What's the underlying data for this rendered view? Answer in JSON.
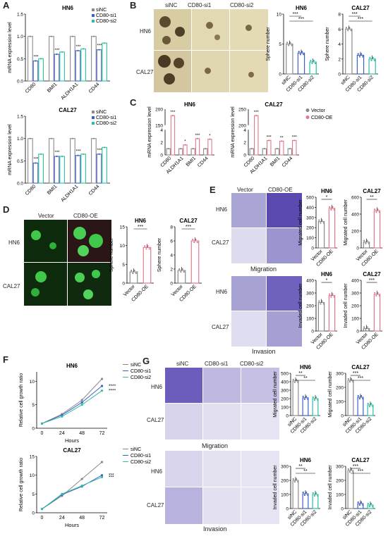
{
  "colors": {
    "siNC": "#8a8a8a",
    "si1": "#3f5fc8",
    "si2": "#2cbfa0",
    "vector": "#8a8a8a",
    "oe": "#e07a8a"
  },
  "panels": {
    "A": {
      "letter": "A"
    },
    "B": {
      "letter": "B",
      "cols": [
        "siNC",
        "CD80-si1",
        "CD80-si2"
      ],
      "rows": [
        "HN6",
        "CAL27"
      ]
    },
    "C": {
      "letter": "C"
    },
    "D": {
      "letter": "D",
      "cols": [
        "Vector",
        "CD80-OE"
      ],
      "rows": [
        "HN6",
        "CAL27"
      ]
    },
    "E": {
      "letter": "E",
      "cols": [
        "Vector",
        "CD80-OE"
      ],
      "rows": [
        "HN6",
        "CAL27",
        "HN6",
        "CAL27"
      ],
      "captions": [
        "Migration",
        "Invasion"
      ]
    },
    "F": {
      "letter": "F"
    },
    "G": {
      "letter": "G",
      "cols": [
        "siNC",
        "CD80-si1",
        "CD80-si2"
      ],
      "rows": [
        "HN6",
        "CAL27",
        "HN6",
        "CAL27"
      ],
      "captions": [
        "Migration",
        "Invasion"
      ]
    }
  },
  "chart_data": [
    {
      "id": "A1",
      "type": "bar",
      "title": "HN6",
      "ylabel": "mRNA expression level",
      "ylim": [
        0,
        1.5
      ],
      "categories": [
        "CD80",
        "BMI1",
        "ALDH1A1",
        "CD44"
      ],
      "series": [
        {
          "name": "siNC",
          "values": [
            1,
            1,
            1,
            1
          ]
        },
        {
          "name": "CD80-si1",
          "values": [
            0.45,
            0.6,
            0.68,
            0.7
          ]
        },
        {
          "name": "CD80-si2",
          "values": [
            0.5,
            0.65,
            0.72,
            0.85
          ]
        }
      ],
      "sig": [
        "***",
        "***",
        "***",
        "***"
      ],
      "legend": [
        "siNC",
        "CD80-si1",
        "CD80-si2"
      ]
    },
    {
      "id": "A2",
      "type": "bar",
      "title": "CAL27",
      "ylabel": "mRNA expression level",
      "ylim": [
        0,
        1.5
      ],
      "categories": [
        "CD80",
        "BMI1",
        "ALDH1A1",
        "CD44"
      ],
      "series": [
        {
          "name": "siNC",
          "values": [
            1,
            1,
            1,
            1
          ]
        },
        {
          "name": "CD80-si1",
          "values": [
            0.45,
            0.6,
            0.62,
            0.65
          ]
        },
        {
          "name": "CD80-si2",
          "values": [
            0.65,
            0.6,
            0.65,
            0.8
          ]
        }
      ],
      "sig": [
        "***",
        "***",
        "***",
        "***"
      ],
      "legend": [
        "siNC",
        "CD80-si1",
        "CD80-si2"
      ]
    },
    {
      "id": "B1",
      "type": "bar",
      "title": "HN6",
      "ylabel": "Sphere number",
      "ylim": [
        0,
        10
      ],
      "ticks": [
        0,
        5,
        10
      ],
      "categories": [
        "siNC",
        "CD80-si1",
        "CD80-si2"
      ],
      "values": [
        5,
        3.5,
        2
      ],
      "sig": [
        "***",
        "***"
      ]
    },
    {
      "id": "B2",
      "type": "bar",
      "title": "CAL27",
      "ylabel": "Sphere number",
      "ylim": [
        0,
        8
      ],
      "ticks": [
        0,
        2,
        4,
        6,
        8
      ],
      "categories": [
        "siNC",
        "CD80-si1",
        "CD80-si2"
      ],
      "values": [
        6,
        2.5,
        2
      ],
      "sig": [
        "***",
        "***"
      ]
    },
    {
      "id": "C1",
      "type": "bar",
      "title": "HN6",
      "ylabel": "mRNA expression level",
      "categories": [
        "CD80",
        "ALDH1A1",
        "BMI1",
        "CD44"
      ],
      "series": [
        {
          "name": "Vector",
          "values": [
            1,
            1,
            1,
            1
          ]
        },
        {
          "name": "CD80-OE",
          "values": [
            180,
            1.6,
            2.6,
            2.5
          ]
        }
      ],
      "sig": [
        "***",
        "*",
        "***",
        "*"
      ]
    },
    {
      "id": "C2",
      "type": "bar",
      "title": "CAL27",
      "ylabel": "mRNA expression level",
      "categories": [
        "CD80",
        "ALDH1A1",
        "BMI1",
        "CD44"
      ],
      "series": [
        {
          "name": "Vector",
          "values": [
            1,
            1,
            1,
            1
          ]
        },
        {
          "name": "CD80-OE",
          "values": [
            230,
            2.3,
            2.2,
            2.3
          ]
        }
      ],
      "sig": [
        "***",
        "***",
        "**",
        "***"
      ],
      "legend": [
        "Vector",
        "CD80-OE"
      ]
    },
    {
      "id": "D1",
      "type": "bar",
      "title": "HN6",
      "ylabel": "Sphere number",
      "ylim": [
        0,
        15
      ],
      "ticks": [
        0,
        5,
        10,
        15
      ],
      "categories": [
        "Vector",
        "CD80-OE"
      ],
      "values": [
        3,
        9.5
      ],
      "sig": [
        "***"
      ]
    },
    {
      "id": "D2",
      "type": "bar",
      "title": "CAL27",
      "ylabel": "Sphere number",
      "ylim": [
        0,
        8
      ],
      "ticks": [
        0,
        2,
        4,
        6,
        8
      ],
      "categories": [
        "Vector",
        "CD80-OE"
      ],
      "values": [
        1.8,
        6
      ],
      "sig": [
        "***"
      ]
    },
    {
      "id": "E1",
      "type": "bar",
      "title": "HN6",
      "ylabel": "Migrated cell number",
      "ylim": [
        0,
        500
      ],
      "ticks": [
        0,
        100,
        200,
        300,
        400,
        500
      ],
      "categories": [
        "Vector",
        "CD80-OE"
      ],
      "values": [
        260,
        390
      ],
      "sig": [
        "*"
      ]
    },
    {
      "id": "E2",
      "type": "bar",
      "title": "CAL27",
      "ylabel": "Migrated cell number",
      "ylim": [
        0,
        600
      ],
      "ticks": [
        0,
        200,
        400,
        600
      ],
      "categories": [
        "Vector",
        "CD80-OE"
      ],
      "values": [
        70,
        440
      ],
      "sig": [
        "**"
      ]
    },
    {
      "id": "E3",
      "type": "bar",
      "title": "HN6",
      "ylabel": "Invaded cell number",
      "ylim": [
        0,
        400
      ],
      "ticks": [
        0,
        100,
        200,
        300,
        400
      ],
      "categories": [
        "Vector",
        "CD80-OE"
      ],
      "values": [
        225,
        280
      ],
      "sig": [
        "*"
      ]
    },
    {
      "id": "E4",
      "type": "bar",
      "title": "CAL27",
      "ylabel": "Invaded cell number",
      "ylim": [
        0,
        400
      ],
      "ticks": [
        0,
        100,
        200,
        300,
        400
      ],
      "categories": [
        "Vector",
        "CD80-OE"
      ],
      "values": [
        20,
        290
      ],
      "sig": [
        "***"
      ]
    },
    {
      "id": "F1",
      "type": "line",
      "title": "HN6",
      "ylabel": "Relative cell growth ratio",
      "xlabel": "Hours",
      "x": [
        0,
        24,
        48,
        72
      ],
      "ylim": [
        0,
        12
      ],
      "yticks": [
        0,
        5,
        10
      ],
      "series": [
        {
          "name": "siNC",
          "values": [
            1,
            3,
            6,
            10.5
          ]
        },
        {
          "name": "CD80-si1",
          "values": [
            1,
            2.8,
            5.5,
            9
          ]
        },
        {
          "name": "CD80-si2",
          "values": [
            1,
            2.5,
            5,
            8
          ]
        }
      ],
      "sig": [
        "****",
        "****"
      ]
    },
    {
      "id": "F2",
      "type": "line",
      "title": "CAL27",
      "ylabel": "Relative cell growth ratio",
      "xlabel": "Hours",
      "x": [
        0,
        24,
        48,
        72
      ],
      "ylim": [
        0,
        15
      ],
      "yticks": [
        0,
        5,
        10,
        15
      ],
      "series": [
        {
          "name": "siNC",
          "values": [
            1,
            4.5,
            9,
            13.5
          ]
        },
        {
          "name": "CD80-si1",
          "values": [
            1,
            4.8,
            7,
            10
          ]
        },
        {
          "name": "CD80-si2",
          "values": [
            1,
            5,
            7.2,
            9.5
          ]
        }
      ],
      "sig": [
        "***",
        "***"
      ]
    },
    {
      "id": "G1",
      "type": "bar",
      "title": "HN6",
      "ylabel": "Migrated cell number",
      "ylim": [
        0,
        500
      ],
      "ticks": [
        0,
        100,
        200,
        300,
        400,
        500
      ],
      "categories": [
        "siNC",
        "CD80-si1",
        "CD80-si2"
      ],
      "values": [
        410,
        210,
        200
      ],
      "sig": [
        "**",
        "**"
      ]
    },
    {
      "id": "G2",
      "type": "bar",
      "title": "CAL27",
      "ylabel": "Migrated cell number",
      "ylim": [
        0,
        300
      ],
      "ticks": [
        0,
        100,
        200,
        300
      ],
      "categories": [
        "siNC",
        "CD80-si1",
        "CD80-si2"
      ],
      "values": [
        250,
        130,
        75
      ],
      "sig": [
        "***",
        "***"
      ]
    },
    {
      "id": "G3",
      "type": "bar",
      "title": "HN6",
      "ylabel": "Invaded cell number",
      "ylim": [
        0,
        300
      ],
      "ticks": [
        0,
        100,
        200,
        300
      ],
      "categories": [
        "siNC",
        "CD80-si1",
        "CD80-si2"
      ],
      "values": [
        200,
        105,
        100
      ],
      "sig": [
        "**",
        "**"
      ]
    },
    {
      "id": "G4",
      "type": "bar",
      "title": "CAL27",
      "ylabel": "Invaded cell number",
      "ylim": [
        0,
        300
      ],
      "ticks": [
        0,
        100,
        200,
        300
      ],
      "categories": [
        "siNC",
        "CD80-si1",
        "CD80-si2"
      ],
      "values": [
        270,
        35,
        25
      ],
      "sig": [
        "***",
        "***"
      ]
    }
  ]
}
